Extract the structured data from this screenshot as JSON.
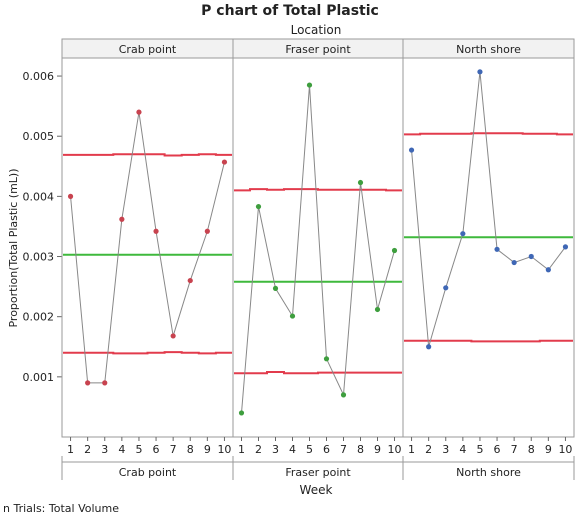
{
  "chart_data": {
    "type": "line",
    "title": "P chart of Total Plastic",
    "group_label": "Location",
    "ylabel": "Proportion(Total Plastic (mL))",
    "xlabel": "Week",
    "footnote": "n Trials: Total Volume",
    "ylim": [
      0.0,
      0.0063
    ],
    "yticks": [
      0.001,
      0.002,
      0.003,
      0.004,
      0.005,
      0.006
    ],
    "ytick_labels": [
      "0.001",
      "0.002",
      "0.003",
      "0.004",
      "0.005",
      "0.006"
    ],
    "x": [
      1,
      2,
      3,
      4,
      5,
      6,
      7,
      8,
      9,
      10
    ],
    "x_tick_labels": [
      "1",
      "2",
      "3",
      "4",
      "5",
      "6",
      "7",
      "8",
      "9",
      "10"
    ],
    "grid": false,
    "panels": [
      {
        "name": "Crab point",
        "point_color": "#c8434f",
        "values": [
          0.004,
          0.0009,
          0.0009,
          0.00362,
          0.0054,
          0.00342,
          0.00168,
          0.0026,
          0.00342,
          0.00457
        ],
        "center": 0.00303,
        "ucl": [
          0.00469,
          0.00469,
          0.00469,
          0.0047,
          0.0047,
          0.0047,
          0.00468,
          0.00469,
          0.0047,
          0.00469
        ],
        "lcl": [
          0.0014,
          0.0014,
          0.0014,
          0.00139,
          0.00139,
          0.0014,
          0.00141,
          0.0014,
          0.00139,
          0.0014
        ]
      },
      {
        "name": "Fraser point",
        "point_color": "#3e9e3e",
        "values": [
          0.0004,
          0.00383,
          0.00247,
          0.00201,
          0.00585,
          0.0013,
          0.0007,
          0.00423,
          0.00212,
          0.0031
        ],
        "center": 0.00258,
        "ucl": [
          0.0041,
          0.00412,
          0.00411,
          0.00412,
          0.00412,
          0.00411,
          0.00411,
          0.00411,
          0.00411,
          0.0041
        ],
        "lcl": [
          0.00106,
          0.00106,
          0.00108,
          0.00106,
          0.00106,
          0.00107,
          0.00107,
          0.00107,
          0.00107,
          0.00107
        ]
      },
      {
        "name": "North shore",
        "point_color": "#3f67b5",
        "values": [
          0.00477,
          0.0015,
          0.00248,
          0.00338,
          0.00607,
          0.00312,
          0.0029,
          0.003,
          0.00278,
          0.00316
        ],
        "center": 0.00332,
        "ucl": [
          0.00503,
          0.00504,
          0.00504,
          0.00504,
          0.00505,
          0.00505,
          0.00505,
          0.00504,
          0.00504,
          0.00503
        ],
        "lcl": [
          0.0016,
          0.0016,
          0.0016,
          0.0016,
          0.00159,
          0.00159,
          0.00159,
          0.00159,
          0.0016,
          0.0016
        ]
      }
    ],
    "colors": {
      "control_limit": "#e23b4c",
      "center_line": "#3fb93c",
      "connector": "#888888"
    }
  }
}
